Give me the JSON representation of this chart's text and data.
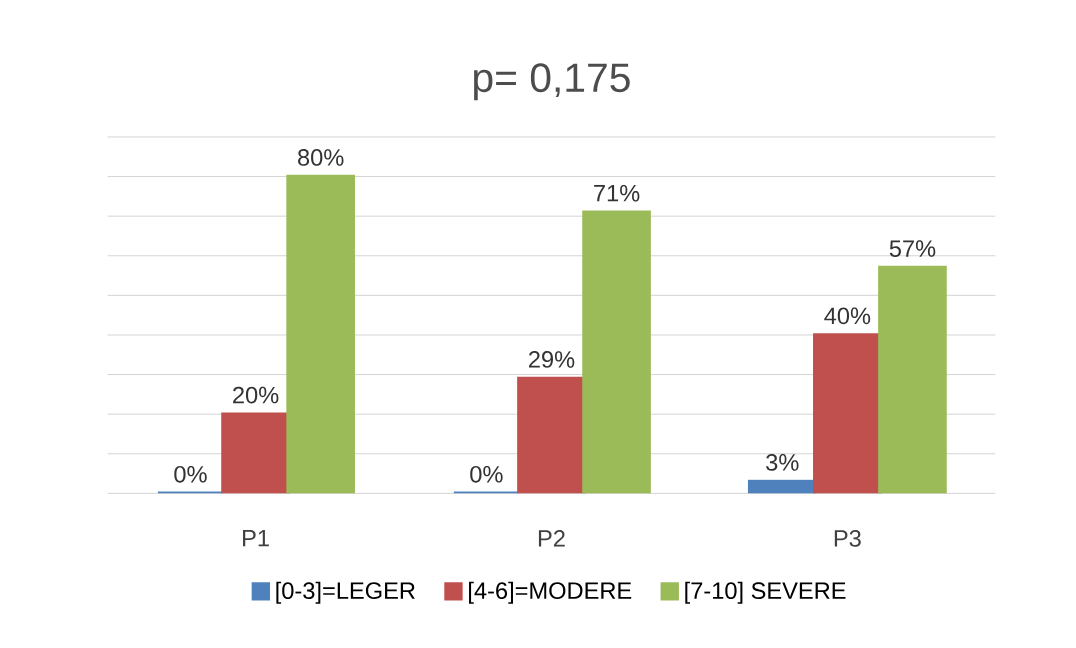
{
  "chart_data": {
    "type": "bar",
    "title": "p= 0,175",
    "categories": [
      "P1",
      "P2",
      "P3"
    ],
    "series": [
      {
        "name": "[0-3]=LEGER",
        "color": "#4f81bd",
        "values": [
          0,
          0,
          3
        ],
        "value_labels": [
          "0%",
          "0%",
          "3%"
        ]
      },
      {
        "name": "[4-6]=MODERE",
        "color": "#c0504d",
        "values": [
          20,
          29,
          40
        ],
        "value_labels": [
          "20%",
          "29%",
          "40%"
        ]
      },
      {
        "name": "[7-10] SEVERE",
        "color": "#9bbb59",
        "values": [
          80,
          71,
          57
        ],
        "value_labels": [
          "80%",
          "71%",
          "57%"
        ]
      }
    ],
    "ylim": [
      0,
      90
    ],
    "yticks": [
      0,
      10,
      20,
      30,
      40,
      50,
      60,
      70,
      80,
      90
    ],
    "grid": "y",
    "tick_labels": "x",
    "legend": "bottom"
  }
}
